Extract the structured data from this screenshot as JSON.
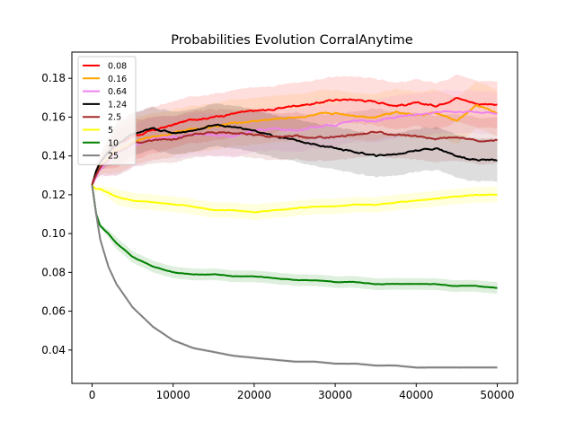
{
  "chart_data": {
    "type": "line",
    "title": "Probabilities Evolution CorralAnytime",
    "xlabel": "",
    "ylabel": "",
    "xlim": [
      -2500,
      52500
    ],
    "ylim": [
      0.0228,
      0.1935
    ],
    "xticks": [
      0,
      10000,
      20000,
      30000,
      40000,
      50000
    ],
    "xtick_labels": [
      "0",
      "10000",
      "20000",
      "30000",
      "40000",
      "50000"
    ],
    "yticks": [
      0.04,
      0.06,
      0.08,
      0.1,
      0.12,
      0.14,
      0.16,
      0.18
    ],
    "ytick_labels": [
      "0.04",
      "0.06",
      "0.08",
      "0.10",
      "0.12",
      "0.14",
      "0.16",
      "0.18"
    ],
    "grid": false,
    "legend_position": "top-left",
    "x": [
      0,
      500,
      1000,
      2000,
      3000,
      5000,
      7500,
      10000,
      12500,
      15000,
      17500,
      20000,
      22500,
      25000,
      27500,
      30000,
      32500,
      35000,
      37500,
      40000,
      42500,
      45000,
      47500,
      50000
    ],
    "series": [
      {
        "name": "0.08",
        "color": "#ff0000",
        "values": [
          0.125,
          0.132,
          0.137,
          0.142,
          0.146,
          0.15,
          0.153,
          0.156,
          0.159,
          0.16,
          0.162,
          0.163,
          0.164,
          0.166,
          0.167,
          0.169,
          0.169,
          0.168,
          0.166,
          0.167,
          0.166,
          0.17,
          0.167,
          0.166
        ],
        "band": 0.012
      },
      {
        "name": "0.16",
        "color": "#ffa500",
        "values": [
          0.125,
          0.13,
          0.134,
          0.139,
          0.143,
          0.147,
          0.15,
          0.152,
          0.154,
          0.155,
          0.157,
          0.158,
          0.159,
          0.16,
          0.161,
          0.162,
          0.161,
          0.16,
          0.163,
          0.161,
          0.162,
          0.158,
          0.166,
          0.162
        ],
        "band": 0.012
      },
      {
        "name": "0.64",
        "color": "#ee82ee",
        "values": [
          0.125,
          0.129,
          0.133,
          0.137,
          0.141,
          0.145,
          0.149,
          0.15,
          0.151,
          0.151,
          0.15,
          0.153,
          0.154,
          0.153,
          0.155,
          0.156,
          0.158,
          0.158,
          0.16,
          0.161,
          0.163,
          0.163,
          0.163,
          0.162
        ],
        "band": 0.011
      },
      {
        "name": "1.24",
        "color": "#000000",
        "values": [
          0.125,
          0.132,
          0.137,
          0.142,
          0.146,
          0.151,
          0.154,
          0.152,
          0.153,
          0.156,
          0.155,
          0.153,
          0.15,
          0.148,
          0.146,
          0.144,
          0.142,
          0.14,
          0.141,
          0.143,
          0.144,
          0.14,
          0.138,
          0.138
        ],
        "band": 0.011
      },
      {
        "name": "2.5",
        "color": "#a52a2a",
        "values": [
          0.125,
          0.13,
          0.134,
          0.138,
          0.142,
          0.146,
          0.148,
          0.149,
          0.151,
          0.152,
          0.152,
          0.151,
          0.15,
          0.15,
          0.149,
          0.15,
          0.151,
          0.152,
          0.151,
          0.15,
          0.149,
          0.15,
          0.148,
          0.148
        ],
        "band": 0.012
      },
      {
        "name": "5",
        "color": "#ffff00",
        "values": [
          0.125,
          0.123,
          0.123,
          0.121,
          0.119,
          0.117,
          0.116,
          0.115,
          0.114,
          0.112,
          0.112,
          0.111,
          0.112,
          0.113,
          0.114,
          0.114,
          0.115,
          0.115,
          0.116,
          0.117,
          0.118,
          0.119,
          0.12,
          0.12
        ],
        "band": 0.004
      },
      {
        "name": "10",
        "color": "#008000",
        "values": [
          0.125,
          0.11,
          0.104,
          0.1,
          0.095,
          0.088,
          0.083,
          0.08,
          0.079,
          0.079,
          0.078,
          0.078,
          0.077,
          0.076,
          0.076,
          0.075,
          0.075,
          0.074,
          0.074,
          0.074,
          0.074,
          0.073,
          0.073,
          0.072
        ],
        "band": 0.003
      },
      {
        "name": "25",
        "color": "#808080",
        "values": [
          0.125,
          0.11,
          0.097,
          0.083,
          0.074,
          0.062,
          0.052,
          0.045,
          0.041,
          0.039,
          0.037,
          0.036,
          0.035,
          0.034,
          0.034,
          0.033,
          0.033,
          0.032,
          0.032,
          0.031,
          0.031,
          0.031,
          0.031,
          0.031
        ],
        "band": 0.0008
      }
    ]
  }
}
